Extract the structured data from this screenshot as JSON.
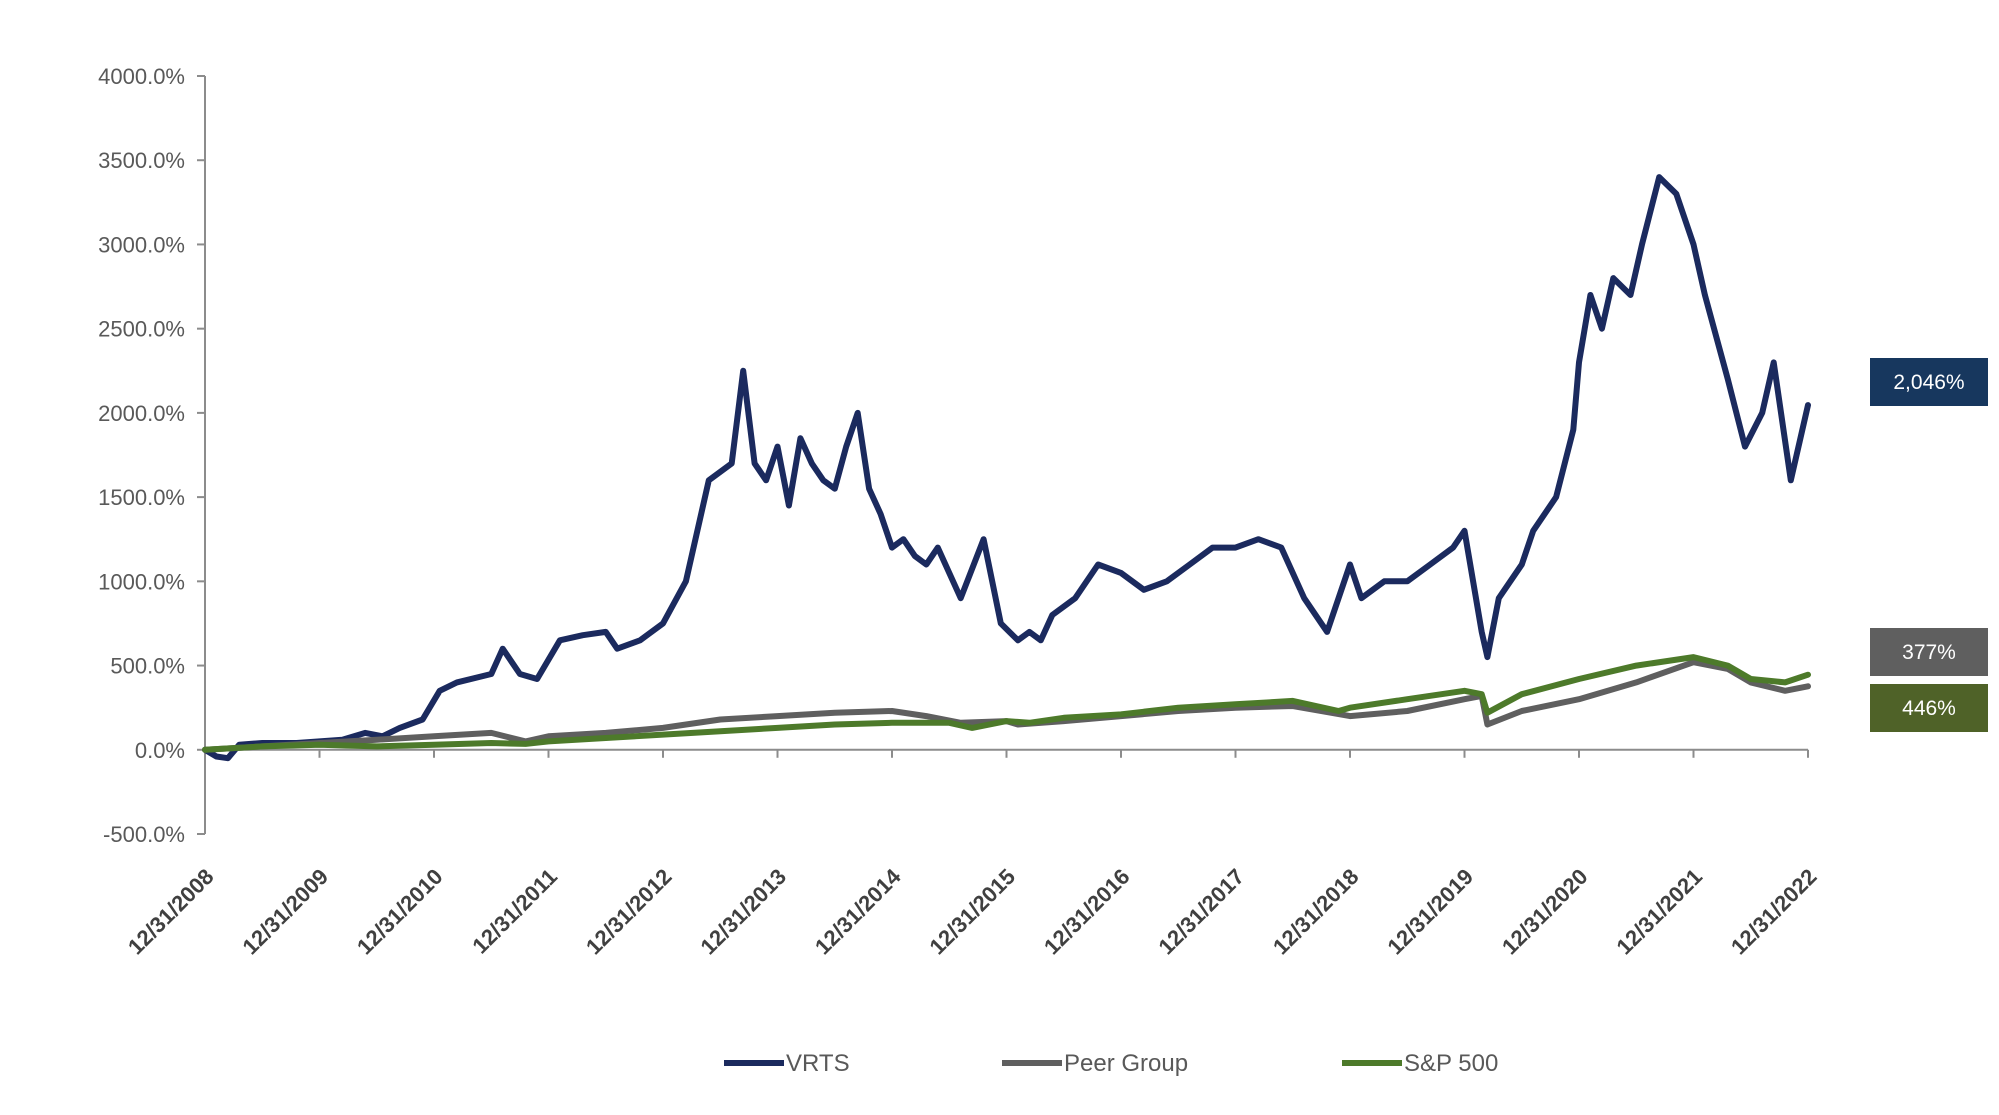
{
  "chart_data": {
    "type": "line",
    "title": "",
    "xlabel": "",
    "ylabel": "",
    "ylim": [
      -500,
      4000
    ],
    "y_ticks": [
      -500,
      0,
      500,
      1000,
      1500,
      2000,
      2500,
      3000,
      3500,
      4000
    ],
    "y_tick_labels": [
      "-500.0%",
      "0.0%",
      "500.0%",
      "1000.0%",
      "1500.0%",
      "2000.0%",
      "2500.0%",
      "3000.0%",
      "3500.0%",
      "4000.0%"
    ],
    "xlim": [
      2009.0,
      2023.0
    ],
    "x_tick_labels": [
      "12/31/2008",
      "12/31/2009",
      "12/31/2010",
      "12/31/2011",
      "12/31/2012",
      "12/31/2013",
      "12/31/2014",
      "12/31/2015",
      "12/31/2016",
      "12/31/2017",
      "12/31/2018",
      "12/31/2019",
      "12/31/2020",
      "12/31/2021",
      "12/31/2022"
    ],
    "legend_position": "bottom",
    "series": [
      {
        "name": "VRTS",
        "color": "#1b2a5e",
        "end_label": "2,046%",
        "badge_color": "#17375e",
        "x": [
          2009.0,
          2009.1,
          2009.2,
          2009.3,
          2009.5,
          2009.8,
          2010.0,
          2010.2,
          2010.4,
          2010.55,
          2010.7,
          2010.9,
          2011.05,
          2011.2,
          2011.5,
          2011.6,
          2011.75,
          2011.9,
          2012.1,
          2012.3,
          2012.5,
          2012.6,
          2012.8,
          2013.0,
          2013.2,
          2013.4,
          2013.6,
          2013.7,
          2013.8,
          2013.9,
          2014.0,
          2014.1,
          2014.2,
          2014.3,
          2014.4,
          2014.5,
          2014.6,
          2014.7,
          2014.8,
          2014.9,
          2015.0,
          2015.1,
          2015.2,
          2015.3,
          2015.4,
          2015.6,
          2015.8,
          2015.95,
          2016.1,
          2016.2,
          2016.3,
          2016.4,
          2016.6,
          2016.8,
          2017.0,
          2017.2,
          2017.4,
          2017.6,
          2017.8,
          2018.0,
          2018.2,
          2018.4,
          2018.6,
          2018.8,
          2019.0,
          2019.1,
          2019.3,
          2019.5,
          2019.7,
          2019.9,
          2020.0,
          2020.15,
          2020.2,
          2020.3,
          2020.5,
          2020.6,
          2020.8,
          2020.95,
          2021.0,
          2021.1,
          2021.2,
          2021.3,
          2021.45,
          2021.55,
          2021.7,
          2021.85,
          2022.0,
          2022.1,
          2022.3,
          2022.45,
          2022.6,
          2022.7,
          2022.85,
          2023.0
        ],
        "values": [
          0,
          -40,
          -50,
          30,
          40,
          40,
          50,
          60,
          100,
          80,
          130,
          180,
          350,
          400,
          450,
          600,
          450,
          420,
          650,
          680,
          700,
          600,
          650,
          750,
          1000,
          1600,
          1700,
          2250,
          1700,
          1600,
          1800,
          1450,
          1850,
          1700,
          1600,
          1550,
          1800,
          2000,
          1550,
          1400,
          1200,
          1250,
          1150,
          1100,
          1200,
          900,
          1250,
          750,
          650,
          700,
          650,
          800,
          900,
          1100,
          1050,
          950,
          1000,
          1100,
          1200,
          1200,
          1250,
          1200,
          900,
          700,
          1100,
          900,
          1000,
          1000,
          1100,
          1200,
          1300,
          700,
          550,
          900,
          1100,
          1300,
          1500,
          1900,
          2300,
          2700,
          2500,
          2800,
          2700,
          3000,
          3400,
          3300,
          3000,
          2700,
          2200,
          1800,
          2000,
          2300,
          1600,
          2046
        ]
      },
      {
        "name": "Peer Group",
        "color": "#5f5f5f",
        "end_label": "377%",
        "badge_color": "#5f5f5f",
        "x": [
          2009.0,
          2009.5,
          2010.0,
          2010.5,
          2011.0,
          2011.5,
          2011.8,
          2012.0,
          2012.5,
          2013.0,
          2013.5,
          2014.0,
          2014.5,
          2015.0,
          2015.3,
          2015.6,
          2016.0,
          2016.1,
          2016.5,
          2017.0,
          2017.5,
          2018.0,
          2018.5,
          2019.0,
          2019.5,
          2020.0,
          2020.15,
          2020.2,
          2020.5,
          2021.0,
          2021.5,
          2022.0,
          2022.3,
          2022.5,
          2022.8,
          2023.0
        ],
        "values": [
          0,
          20,
          40,
          60,
          80,
          100,
          50,
          80,
          100,
          130,
          180,
          200,
          220,
          230,
          200,
          160,
          170,
          150,
          170,
          200,
          230,
          250,
          260,
          200,
          230,
          300,
          320,
          150,
          230,
          300,
          400,
          520,
          480,
          400,
          350,
          377
        ]
      },
      {
        "name": "S&P 500",
        "color": "#4d7a2a",
        "end_label": "446%",
        "badge_color": "#4f6228",
        "x": [
          2009.0,
          2009.5,
          2010.0,
          2010.5,
          2011.0,
          2011.5,
          2011.8,
          2012.0,
          2012.5,
          2013.0,
          2013.5,
          2014.0,
          2014.5,
          2015.0,
          2015.5,
          2015.7,
          2016.0,
          2016.2,
          2016.5,
          2017.0,
          2017.5,
          2018.0,
          2018.5,
          2018.9,
          2019.0,
          2019.5,
          2020.0,
          2020.15,
          2020.2,
          2020.5,
          2021.0,
          2021.5,
          2022.0,
          2022.3,
          2022.5,
          2022.8,
          2023.0
        ],
        "values": [
          0,
          20,
          30,
          20,
          30,
          40,
          35,
          50,
          70,
          90,
          110,
          130,
          150,
          160,
          160,
          130,
          170,
          160,
          190,
          210,
          250,
          270,
          290,
          230,
          250,
          300,
          350,
          330,
          220,
          330,
          420,
          500,
          550,
          500,
          420,
          400,
          446
        ]
      }
    ]
  }
}
